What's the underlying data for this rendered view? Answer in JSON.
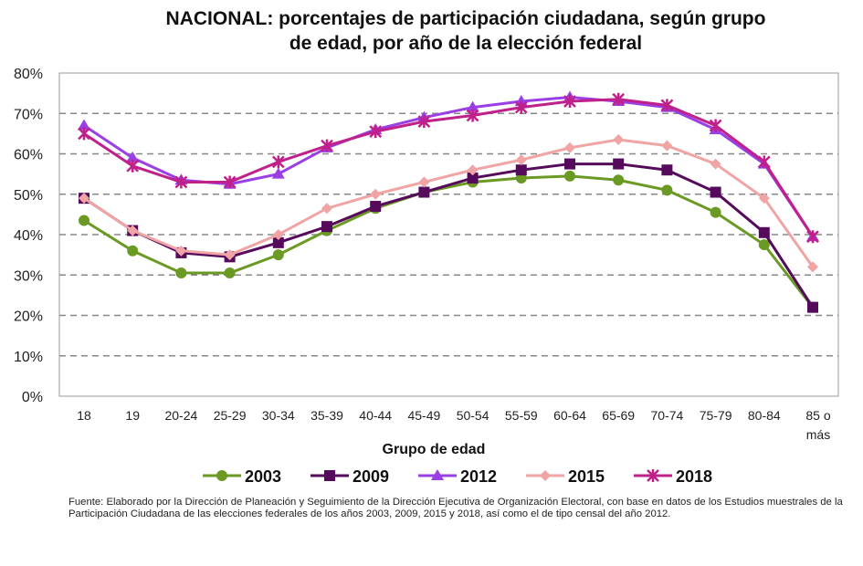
{
  "chart_data": {
    "type": "line",
    "title": [
      "NACIONAL:  porcentajes de participación ciudadana, según grupo",
      "de edad, por año de la elección federal"
    ],
    "xlabel": "Grupo de edad",
    "ylabel": "",
    "categories": [
      "18",
      "19",
      "20-24",
      "25-29",
      "30-34",
      "35-39",
      "40-44",
      "45-49",
      "50-54",
      "55-59",
      "60-64",
      "65-69",
      "70-74",
      "75-79",
      "80-84",
      "85 o más"
    ],
    "ylim": [
      0,
      80
    ],
    "yticks": [
      "0%",
      "10%",
      "20%",
      "30%",
      "40%",
      "50%",
      "60%",
      "70%",
      "80%"
    ],
    "grid": "horizontal dashed",
    "legend": "bottom",
    "series": [
      {
        "name": "2003",
        "color": "#6a9a23",
        "marker": "circle",
        "values": [
          43.5,
          36,
          30.5,
          30.5,
          35,
          41,
          46.5,
          50.5,
          53,
          54,
          54.5,
          53.5,
          51,
          45.5,
          37.5,
          22
        ]
      },
      {
        "name": "2009",
        "color": "#560a5c",
        "marker": "square",
        "values": [
          49,
          41,
          35.5,
          34.5,
          38,
          42,
          47,
          50.5,
          54,
          56,
          57.5,
          57.5,
          56,
          50.5,
          40.5,
          22
        ]
      },
      {
        "name": "2012",
        "color": "#9a3ee6",
        "marker": "triangle",
        "values": [
          67,
          59,
          53.5,
          52.5,
          55,
          61.5,
          66,
          69,
          71.5,
          73,
          74,
          73,
          71.5,
          66,
          57.5,
          39.5
        ]
      },
      {
        "name": "2015",
        "color": "#f0a4a4",
        "marker": "diamond",
        "values": [
          49,
          41,
          36,
          35,
          40,
          46.5,
          50,
          53,
          56,
          58.5,
          61.5,
          63.5,
          62,
          57.5,
          49,
          32
        ]
      },
      {
        "name": "2018",
        "color": "#c0208a",
        "marker": "star",
        "values": [
          65,
          57,
          53,
          53,
          58,
          62,
          65.5,
          68,
          69.5,
          71.5,
          73,
          73.5,
          72,
          67,
          58,
          39.5
        ]
      }
    ]
  },
  "footnote": "Fuente: Elaborado por la Dirección de Planeación y Seguimiento de la Dirección Ejecutiva de Organización Electoral, con base en datos de los Estudios muestrales de la Participación Ciudadana de las elecciones federales de los años 2003, 2009, 2015 y 2018, así como el de tipo censal del año 2012."
}
